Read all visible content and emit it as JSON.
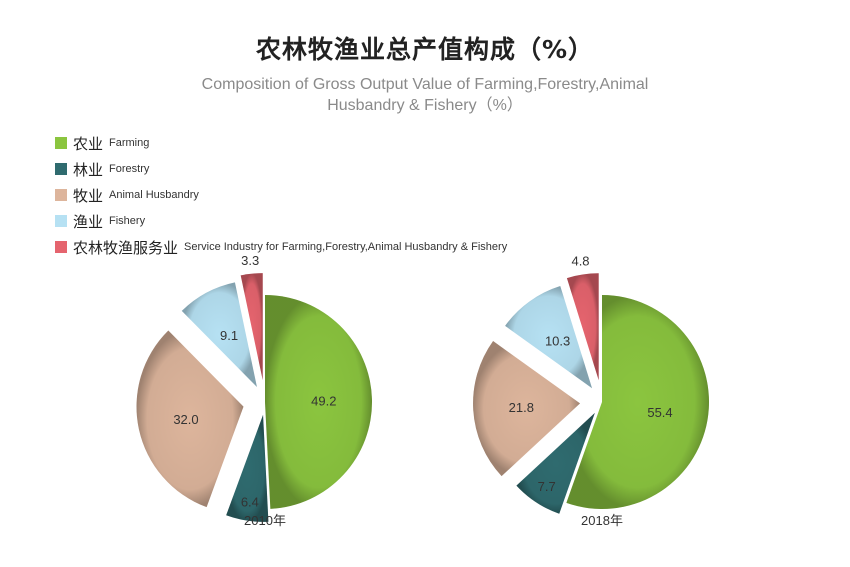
{
  "title": {
    "cn": "农林牧渔业总产值构成（%）",
    "en_line1": "Composition of Gross Output Value of Farming,Forestry,Animal",
    "en_line2": "Husbandry & Fishery（%）"
  },
  "legend": [
    {
      "cn": "农业",
      "en": "Farming",
      "color": "#8bc53f"
    },
    {
      "cn": "林业",
      "en": "Forestry",
      "color": "#2f6b6f"
    },
    {
      "cn": "牧业",
      "en": "Animal Husbandry",
      "color": "#ddb59c"
    },
    {
      "cn": "渔业",
      "en": "Fishery",
      "color": "#b6e1f3"
    },
    {
      "cn": "农林牧渔服务业",
      "en": "Service Industry for Farming,Forestry,Animal Husbandry & Fishery",
      "color": "#e5646e"
    }
  ],
  "chart_data": [
    {
      "type": "pie",
      "title": "2010年",
      "categories": [
        "农业",
        "林业",
        "牧业",
        "渔业",
        "农林牧渔服务业"
      ],
      "values": [
        49.2,
        6.4,
        32.0,
        9.1,
        3.3
      ],
      "labels": [
        "49.2",
        "6.4",
        "32.0",
        "9.1",
        "3.3"
      ]
    },
    {
      "type": "pie",
      "title": "2018年",
      "categories": [
        "农业",
        "林业",
        "牧业",
        "渔业",
        "农林牧渔服务业"
      ],
      "values": [
        55.4,
        7.7,
        21.8,
        10.3,
        4.8
      ],
      "labels": [
        "55.4",
        "7.7",
        "21.8",
        "10.3",
        "4.8"
      ]
    }
  ]
}
